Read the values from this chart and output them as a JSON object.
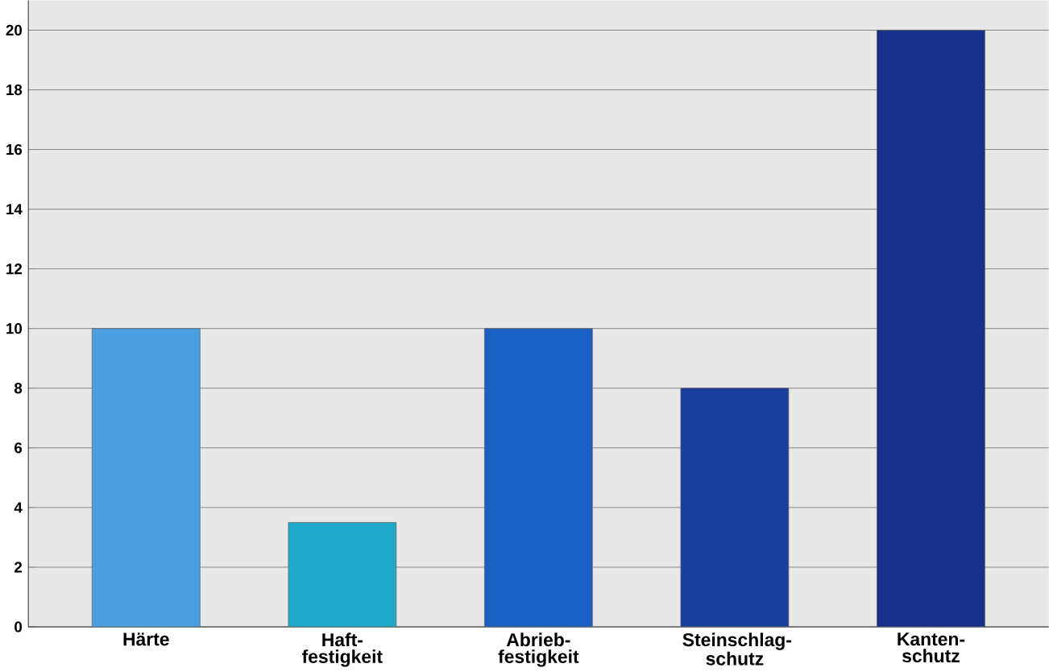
{
  "chart_data": {
    "type": "bar",
    "categories": [
      "Härte",
      "Haft- festigkeit",
      "Abrieb- festigkeit",
      "Steinschlag- schutz",
      "Kanten- schutz"
    ],
    "values": [
      10,
      3.5,
      10,
      8,
      20
    ],
    "colors": [
      "#4a9fe0",
      "#1fa9c9",
      "#1a5fc4",
      "#1a3d9e",
      "#182f8c"
    ],
    "ylim": [
      0,
      21
    ],
    "yticks": [
      0,
      2,
      4,
      6,
      8,
      10,
      12,
      14,
      16,
      18,
      20
    ],
    "grid": "y"
  }
}
